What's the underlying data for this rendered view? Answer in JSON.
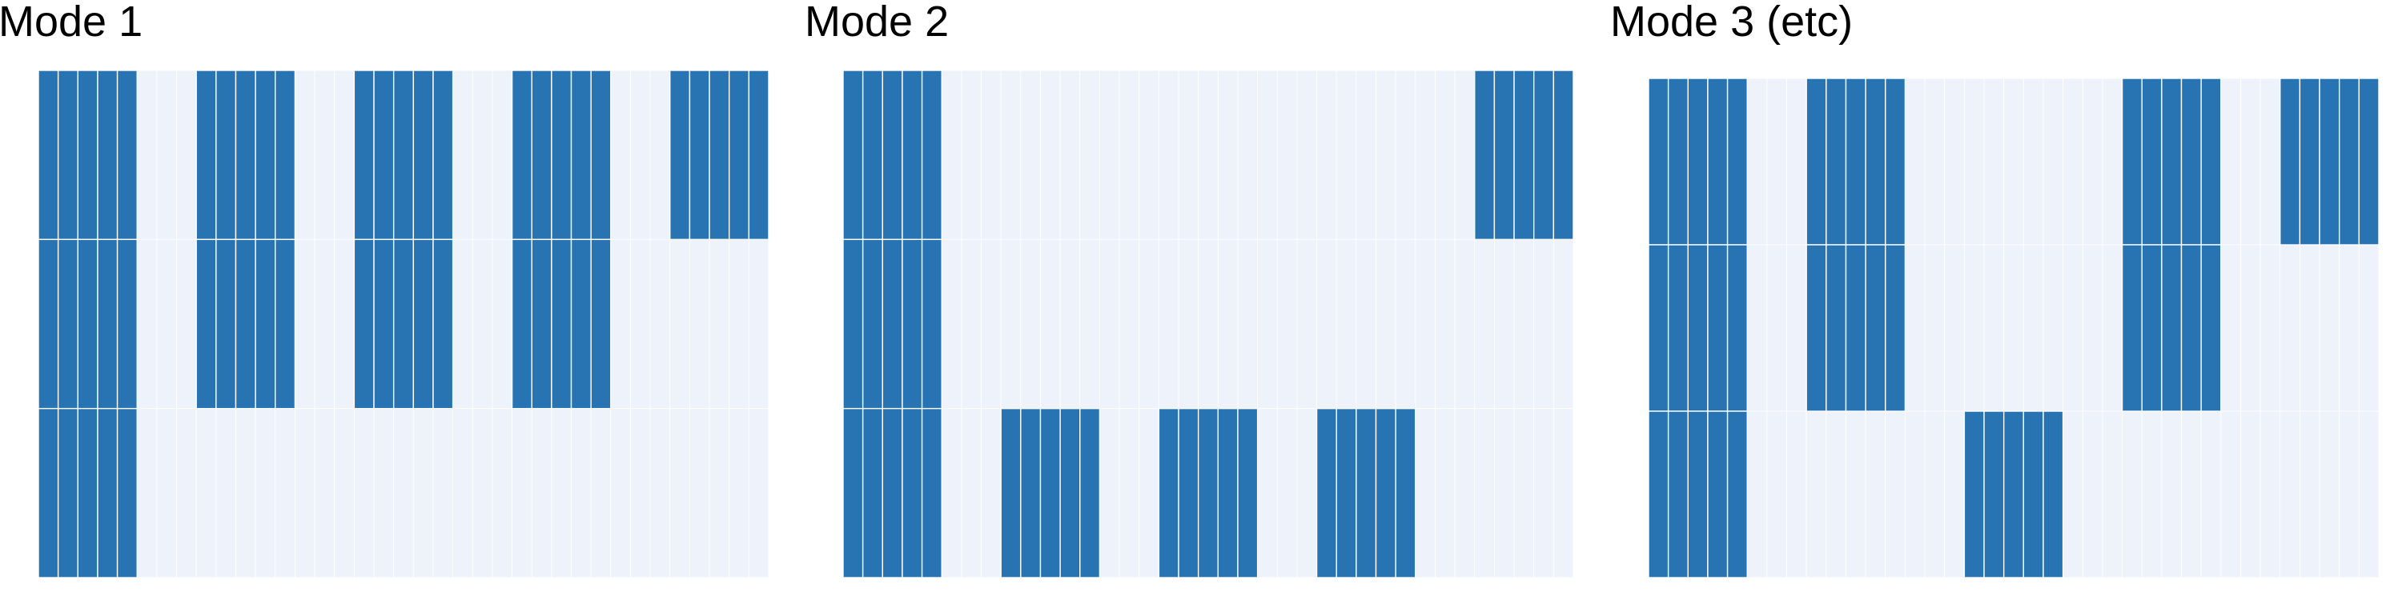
{
  "chart_data": [
    {
      "type": "heatmap",
      "title": "Mode 1",
      "n_columns": 37,
      "n_rows": 3,
      "active_runs": [
        [
          [
            0,
            4
          ],
          [
            8,
            12
          ],
          [
            16,
            20
          ],
          [
            24,
            28
          ],
          [
            32,
            36
          ]
        ],
        [
          [
            0,
            4
          ],
          [
            8,
            12
          ],
          [
            16,
            20
          ],
          [
            24,
            28
          ]
        ],
        [
          [
            0,
            4
          ]
        ]
      ]
    },
    {
      "type": "heatmap",
      "title": "Mode 2",
      "n_columns": 37,
      "n_rows": 3,
      "active_runs": [
        [
          [
            0,
            4
          ],
          [
            32,
            36
          ]
        ],
        [
          [
            0,
            4
          ]
        ],
        [
          [
            0,
            4
          ],
          [
            8,
            12
          ],
          [
            16,
            20
          ],
          [
            24,
            28
          ]
        ]
      ]
    },
    {
      "type": "heatmap",
      "title": "Mode 3 (etc)",
      "n_columns": 37,
      "n_rows": 3,
      "active_runs": [
        [
          [
            0,
            4
          ],
          [
            8,
            12
          ],
          [
            24,
            28
          ],
          [
            32,
            36
          ]
        ],
        [
          [
            0,
            4
          ],
          [
            8,
            12
          ],
          [
            24,
            28
          ]
        ],
        [
          [
            0,
            4
          ],
          [
            16,
            20
          ]
        ]
      ]
    }
  ],
  "colors": {
    "active": "#2874b3",
    "inactive": "#edf2fb",
    "grid": "#ffffff",
    "title": "#000000"
  }
}
